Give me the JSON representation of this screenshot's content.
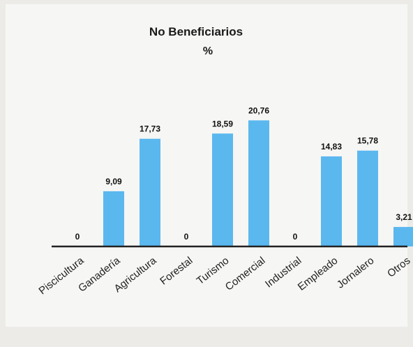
{
  "chart_data": {
    "type": "bar",
    "title": "No Beneficiarios",
    "subtitle": "%",
    "categories": [
      "Piscicultura",
      "Ganadería",
      "Agricultura",
      "Forestal",
      "Turismo",
      "Comercial",
      "Industrial",
      "Empleado",
      "Jornalero",
      "Otros"
    ],
    "values": [
      0,
      9.09,
      17.73,
      0,
      18.59,
      20.76,
      0,
      14.83,
      15.78,
      3.21
    ],
    "data_labels": [
      "0",
      "9,09",
      "17,73",
      "0",
      "18,59",
      "20,76",
      "0",
      "14,83",
      "15,78",
      "3,21"
    ],
    "xlabel": "",
    "ylabel": "",
    "ylim": [
      0,
      24
    ],
    "grid": false,
    "legend": "none",
    "bar_color": "#5bb8ef",
    "axis_color": "#222222"
  }
}
